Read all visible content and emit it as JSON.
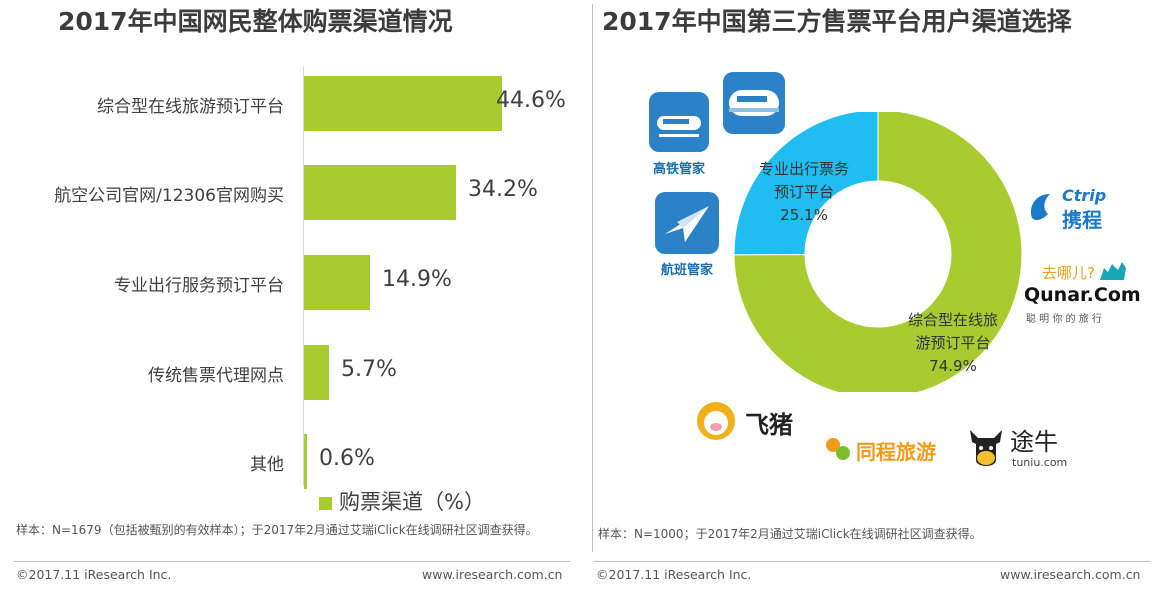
{
  "left_panel": {
    "title": "2017年中国网民整体购票渠道情况",
    "note": "样本：N=1679（包括被甄别的有效样本）；于2017年2月通过艾瑞iClick在线调研社区调查获得。",
    "footer_left": "©2017.11 iResearch Inc.",
    "footer_right": "www.iresearch.com.cn"
  },
  "right_panel": {
    "title": "2017年中国第三方售票平台用户渠道选择",
    "note": "样本：N=1000；于2017年2月通过艾瑞iClick在线调研社区调查获得。",
    "footer_left": "©2017.11 iResearch Inc.",
    "footer_right": "www.iresearch.com.cn",
    "logos": {
      "gaotie": "高铁管家",
      "hangban": "航班管家",
      "ctrip_en": "Ctrip",
      "ctrip_cn": "携程",
      "qunar_top": "去哪儿?",
      "qunar_en": "Qunar.Com",
      "qunar_slogan": "聪 明 你 的 旅 行",
      "feizhu": "飞猪",
      "tongcheng": "同程旅游",
      "tuniu_cn": "途牛",
      "tuniu_en": "tuniu.com"
    }
  },
  "colors": {
    "green": "#a8cc2f",
    "blue": "#1fbdf0",
    "icon_blue": "#2b82c6"
  },
  "chart_data": [
    {
      "type": "bar",
      "orientation": "horizontal",
      "title": "2017年中国网民整体购票渠道情况",
      "categories": [
        "综合型在线旅游预订平台",
        "航空公司官网/12306官网购买",
        "专业出行服务预订平台",
        "传统售票代理网点",
        "其他"
      ],
      "values": [
        44.6,
        34.2,
        14.9,
        5.7,
        0.6
      ],
      "value_labels": [
        "44.6%",
        "34.2%",
        "14.9%",
        "5.7%",
        "0.6%"
      ],
      "series": [
        {
          "name": "购票渠道（%）",
          "values": [
            44.6,
            34.2,
            14.9,
            5.7,
            0.6
          ]
        }
      ],
      "legend": "bottom"
    },
    {
      "type": "pie",
      "style": "donut",
      "title": "2017年中国第三方售票平台用户渠道选择",
      "slices": [
        {
          "label_lines": [
            "专业出行票务",
            "预订平台",
            "25.1%"
          ],
          "value": 25.1
        },
        {
          "label_lines": [
            "综合型在线旅",
            "游预订平台",
            "74.9%"
          ],
          "value": 74.9
        }
      ]
    }
  ]
}
